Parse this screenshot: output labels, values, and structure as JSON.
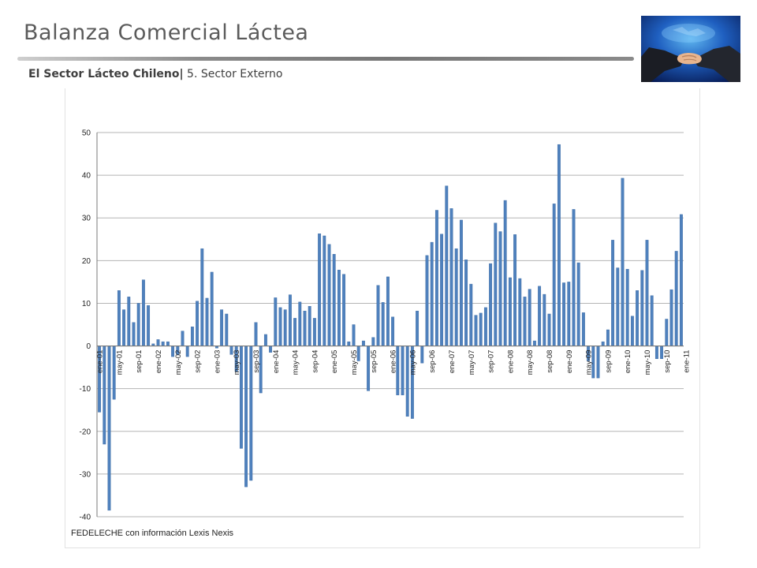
{
  "header": {
    "title": "Balanza Comercial Láctea",
    "subtitle_bold": "El Sector Lácteo Chileno|",
    "subtitle_rest": " 5. Sector Externo"
  },
  "photo": {
    "icon": "handshake-globe-photo"
  },
  "colors": {
    "bar": "#4f81bd",
    "bar_edge": "#3b6aa3",
    "grid": "#b5b5b5",
    "axis": "#7a7a7a"
  },
  "chart_data": {
    "type": "bar",
    "ylim": [
      -40,
      50
    ],
    "yticks": [
      50,
      40,
      30,
      20,
      10,
      0,
      -10,
      -20,
      -30,
      -40
    ],
    "grid": true,
    "legend": "none",
    "xtick_labels": [
      "ene-01",
      "may-01",
      "sep-01",
      "ene-02",
      "may-02",
      "sep-02",
      "ene-03",
      "may-03",
      "sep-03",
      "ene-04",
      "may-04",
      "sep-04",
      "ene-05",
      "may-05",
      "sep-05",
      "ene-06",
      "may-06",
      "sep-06",
      "ene-07",
      "may-07",
      "sep-07",
      "ene-08",
      "may-08",
      "sep-08",
      "ene-09",
      "may-09",
      "sep-09",
      "ene-10",
      "may-10",
      "sep-10",
      "ene-11"
    ],
    "xtick_every": 4,
    "values": [
      -15.5,
      -23,
      -38.5,
      -12.5,
      13,
      8.5,
      11.5,
      5.5,
      10,
      15.5,
      9.5,
      0.5,
      1.5,
      1,
      1,
      -2.5,
      -2,
      3.5,
      -2.5,
      4.5,
      10.5,
      22.8,
      11.2,
      17.3,
      -0.5,
      8.5,
      7.5,
      -2,
      -6,
      -24,
      -33,
      -31.5,
      5.5,
      -11,
      2.7,
      -1.5,
      11.3,
      9,
      8.5,
      12,
      6.5,
      10.3,
      8.2,
      9.3,
      6.5,
      26.3,
      25.8,
      23.8,
      21.5,
      17.8,
      16.8,
      1,
      5,
      -3.5,
      1.2,
      -10.5,
      2,
      14.2,
      10.2,
      16.2,
      6.8,
      -11.5,
      -11.5,
      -16.5,
      -17,
      8.2,
      -4,
      21.2,
      24.3,
      31.8,
      26.2,
      37.5,
      32.2,
      22.8,
      29.5,
      20.2,
      14.5,
      7.2,
      7.7,
      9,
      19.3,
      28.8,
      26.8,
      34.1,
      16,
      26.1,
      15.8,
      11.5,
      13.3,
      1.2,
      14,
      12.1,
      7.5,
      33.3,
      47.2,
      14.8,
      15,
      32,
      19.5,
      7.8,
      -3.5,
      -7.5,
      -7.5,
      1,
      3.8,
      24.8,
      18.3,
      39.3,
      18,
      7,
      13,
      17.7,
      24.8,
      11.8,
      -3,
      -3,
      6.3,
      13.2,
      22.2,
      30.8
    ]
  },
  "footnote": "FEDELECHE con información Lexis Nexis"
}
